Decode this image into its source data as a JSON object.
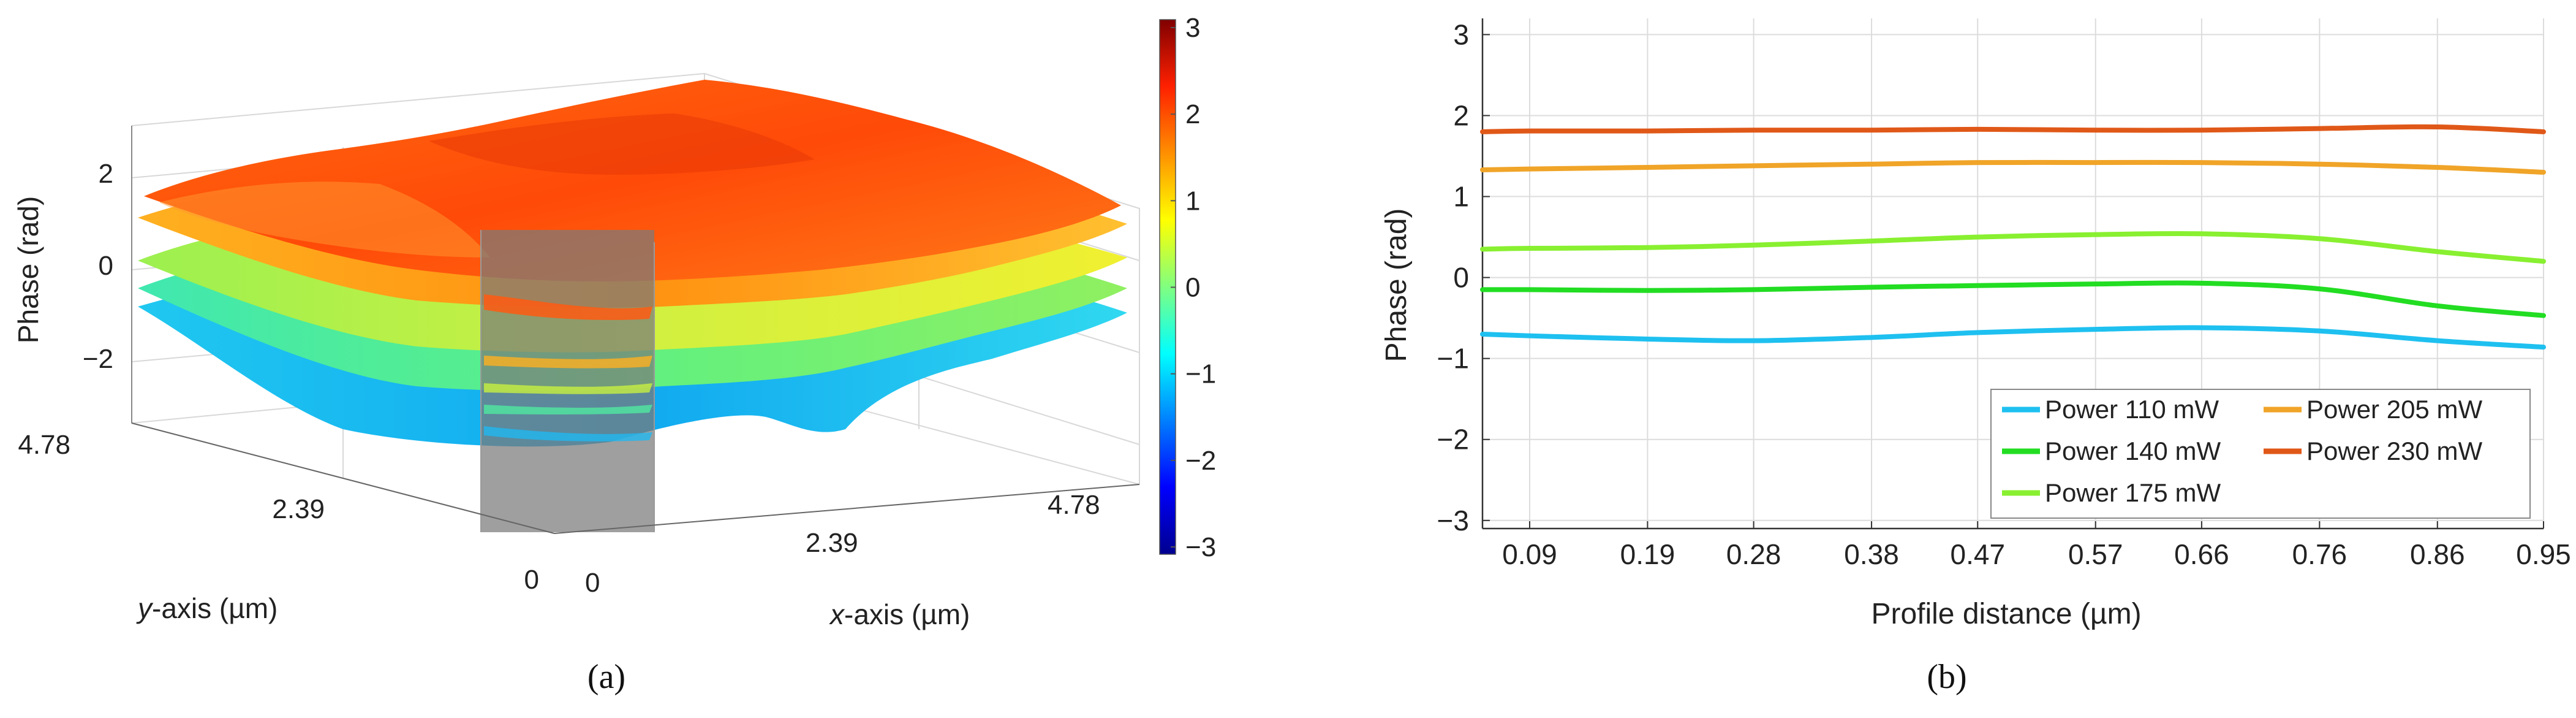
{
  "panel_a": {
    "caption": "(a)",
    "z_label": "Phase (rad)",
    "y_label": "y-axis (µm)",
    "x_label": "x-axis (µm)",
    "z_ticks": [
      "2",
      "0",
      "−2"
    ],
    "y_ticks": [
      "4.78",
      "2.39",
      "0"
    ],
    "x_ticks": [
      "0",
      "2.39",
      "4.78"
    ],
    "colorbar_ticks": [
      "3",
      "2",
      "1",
      "0",
      "−1",
      "−2",
      "−3"
    ],
    "surfaces": [
      {
        "name": "Power 230 mW",
        "mean_phase": 1.82
      },
      {
        "name": "Power 205 mW",
        "mean_phase": 1.38
      },
      {
        "name": "Power 175 mW",
        "mean_phase": 0.4
      },
      {
        "name": "Power 140 mW",
        "mean_phase": -0.15
      },
      {
        "name": "Power 110 mW",
        "mean_phase": -0.7
      }
    ]
  },
  "chart_data": {
    "type": "line",
    "caption": "(b)",
    "title": "",
    "xlabel": "Profile distance (µm)",
    "ylabel": "Phase (rad)",
    "xlim": [
      0.05,
      0.95
    ],
    "ylim": [
      -3.1,
      3.2
    ],
    "grid": true,
    "legend_position": "bottom-right",
    "x_ticks": [
      "0.09",
      "0.19",
      "0.28",
      "0.38",
      "0.47",
      "0.57",
      "0.66",
      "0.76",
      "0.86",
      "0.95"
    ],
    "y_ticks": [
      "3",
      "2",
      "1",
      "0",
      "−1",
      "−2",
      "−3"
    ],
    "x": [
      0.05,
      0.09,
      0.19,
      0.28,
      0.38,
      0.47,
      0.57,
      0.66,
      0.76,
      0.86,
      0.95
    ],
    "series": [
      {
        "name": "Power 110 mW",
        "color": "#1ec0f0",
        "values": [
          -0.7,
          -0.72,
          -0.76,
          -0.78,
          -0.74,
          -0.68,
          -0.64,
          -0.62,
          -0.66,
          -0.78,
          -0.86
        ]
      },
      {
        "name": "Power 140 mW",
        "color": "#22dd22",
        "values": [
          -0.15,
          -0.15,
          -0.16,
          -0.15,
          -0.12,
          -0.1,
          -0.08,
          -0.07,
          -0.14,
          -0.35,
          -0.47
        ]
      },
      {
        "name": "Power 175 mW",
        "color": "#88f030",
        "values": [
          0.35,
          0.36,
          0.37,
          0.4,
          0.45,
          0.5,
          0.53,
          0.54,
          0.48,
          0.32,
          0.2
        ]
      },
      {
        "name": "Power 205 mW",
        "color": "#f0a428",
        "values": [
          1.33,
          1.34,
          1.36,
          1.38,
          1.4,
          1.42,
          1.42,
          1.42,
          1.4,
          1.36,
          1.3
        ]
      },
      {
        "name": "Power 230 mW",
        "color": "#e05818",
        "values": [
          1.8,
          1.81,
          1.81,
          1.82,
          1.82,
          1.83,
          1.82,
          1.82,
          1.84,
          1.86,
          1.8
        ]
      }
    ]
  }
}
